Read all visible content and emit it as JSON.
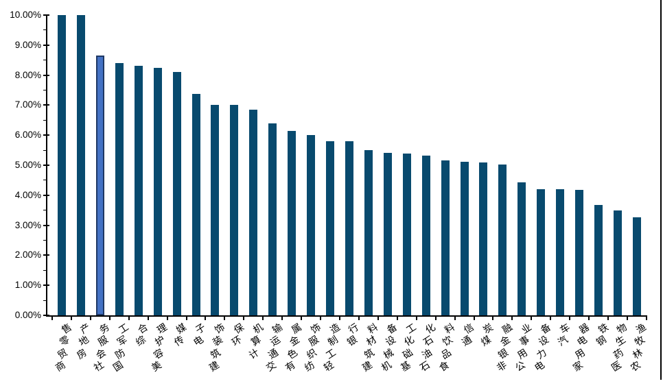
{
  "chart_data": {
    "type": "bar",
    "title": "",
    "xlabel": "",
    "ylabel": "",
    "ylim": [
      0,
      10
    ],
    "y_unit": "percent",
    "grid": "off",
    "legend": "none",
    "y_tick_labels": [
      "0.00%",
      "1.00%",
      "2.00%",
      "3.00%",
      "4.00%",
      "5.00%",
      "6.00%",
      "7.00%",
      "8.00%",
      "9.00%",
      "10.00%"
    ],
    "y_major_step_pct": 1.0,
    "y_minor_step_pct": 0.5,
    "categories": [
      "商贸零售",
      "房地产",
      "社会服务",
      "国防军工",
      "综合",
      "美容护理",
      "传媒",
      "电子",
      "建筑装饰",
      "环保",
      "计算机",
      "交通运输",
      "有色金属",
      "纺织服饰",
      "轻工制造",
      "银行",
      "建筑材料",
      "机械设备",
      "基础化工",
      "石油石化",
      "食品饮料",
      "通信",
      "煤炭",
      "非银金融",
      "公用事业",
      "电力设备",
      "汽车",
      "家用电器",
      "钢铁",
      "医药生物",
      "农林牧渔"
    ],
    "values_pct": [
      10.0,
      10.0,
      8.65,
      8.4,
      8.3,
      8.25,
      8.1,
      7.38,
      7.0,
      7.0,
      6.85,
      6.4,
      6.15,
      6.0,
      5.8,
      5.8,
      5.5,
      5.4,
      5.38,
      5.32,
      5.15,
      5.12,
      5.1,
      5.02,
      4.42,
      4.2,
      4.2,
      4.18,
      3.68,
      3.5,
      3.27
    ],
    "highlighted_category": "社会服务",
    "highlighted_index": 2,
    "colors": {
      "bar": "#084A6E",
      "highlight_fill": "#4472C4",
      "highlight_border": "#1F3864",
      "axis": "#000000",
      "text": "#000000",
      "background": "#FFFFFF"
    }
  }
}
